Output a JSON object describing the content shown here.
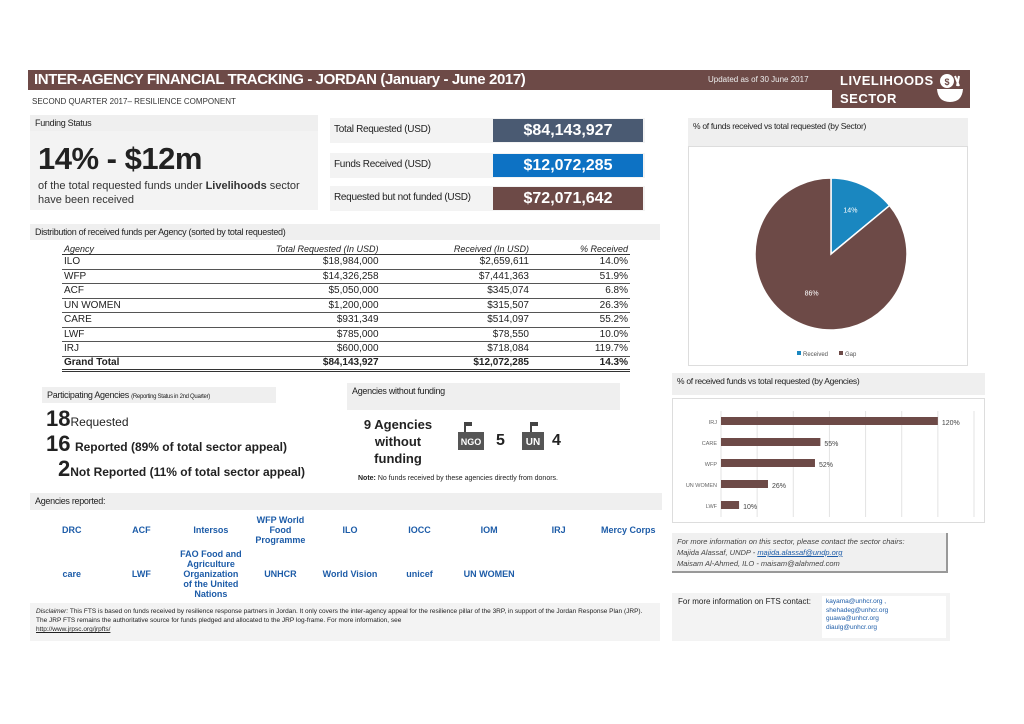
{
  "header": {
    "title": "INTER-AGENCY FINANCIAL TRACKING - JORDAN (January - June 2017)",
    "updated": "Updated as of 30 June 2017",
    "sector_line1": "LIVELIHOODS",
    "sector_line2": "SECTOR",
    "sector_icon": "money-bag-bowl-icon",
    "subtitle": "SECOND QUARTER 2017– RESILIENCE COMPONENT"
  },
  "funding": {
    "header": "Funding Status",
    "big": "14% - $12m",
    "text_pre": "of the total requested funds under ",
    "text_bold": "Livelihoods",
    "text_post": " sector have been received"
  },
  "summary": [
    {
      "label": "Total Requested (USD)",
      "value": "$84,143,927",
      "color": "#4a5a72"
    },
    {
      "label": "Funds Received  (USD)",
      "value": "$12,072,285",
      "color": "#0d72c4"
    },
    {
      "label": "Requested but not funded (USD)",
      "value": "$72,071,642",
      "color": "#6d4a47"
    }
  ],
  "distribution": {
    "header": "Distribution of received funds per Agency (sorted by total requested)",
    "columns": [
      "Agency",
      "Total Requested (In USD)",
      "Received (In USD)",
      "% Received"
    ],
    "rows": [
      [
        "ILO",
        "$18,984,000",
        "$2,659,611",
        "14.0%"
      ],
      [
        "WFP",
        "$14,326,258",
        "$7,441,363",
        "51.9%"
      ],
      [
        "ACF",
        "$5,050,000",
        "$345,074",
        "6.8%"
      ],
      [
        "UN WOMEN",
        "$1,200,000",
        "$315,507",
        "26.3%"
      ],
      [
        "CARE",
        "$931,349",
        "$514,097",
        "55.2%"
      ],
      [
        "LWF",
        "$785,000",
        "$78,550",
        "10.0%"
      ],
      [
        "IRJ",
        "$600,000",
        "$718,084",
        "119.7%"
      ]
    ],
    "total": [
      "Grand Total",
      "$84,143,927",
      "$12,072,285",
      "14.3%"
    ]
  },
  "participating": {
    "header": "Participating Agencies",
    "header_small": "(Reporting Status in 2nd Quarter)",
    "items": [
      {
        "n": "18",
        "t": "Requested"
      },
      {
        "n": "16",
        "t": "Reported (89% of total sector appeal)"
      },
      {
        "n": "2",
        "t": "Not Reported (11% of total sector appeal)"
      }
    ]
  },
  "without": {
    "header": "Agencies without funding",
    "title": "9 Agencies without funding",
    "ngo_label": "NGO",
    "ngo_count": "5",
    "un_label": "UN",
    "un_count": "4",
    "note_bold": "Note:",
    "note": " No funds received by these agencies directly from donors."
  },
  "reported": {
    "header": "Agencies reported:",
    "logos": [
      "DRC",
      "ACF",
      "Intersos",
      "WFP World Food Programme",
      "ILO",
      "IOCC",
      "IOM",
      "IRJ",
      "Mercy Corps",
      "care",
      "LWF",
      "FAO Food and Agriculture Organization of the United Nations",
      "UNHCR",
      "World Vision",
      "unicef",
      "UN WOMEN"
    ]
  },
  "disclaimer": {
    "label": "Disclaimer:",
    "text": " This FTS is based on funds received by resilience response partners in Jordan. It only covers the inter-agency appeal for the resilience pillar of the 3RP, in support of the Jordan Response Plan (JRP). The JRP FTS remains the authoritative source for funds pledged and allocated to the JRP log-frame. For more information, see ",
    "link": "http://www.jrpsc.org/jrpfts/"
  },
  "chart_data": [
    {
      "type": "pie",
      "title": "% of funds received vs total requested (by Sector)",
      "labels": [
        "Received",
        "Gap"
      ],
      "values": [
        14,
        86
      ],
      "data_labels": [
        "14%",
        "86%"
      ],
      "colors": [
        "#1a87c0",
        "#6d4a47"
      ],
      "legend": "bottom"
    },
    {
      "type": "bar",
      "orientation": "horizontal",
      "title": "% of received funds vs total requested (by Agencies)",
      "categories": [
        "IRJ",
        "CARE",
        "WFP",
        "UN WOMEN",
        "LWF"
      ],
      "values": [
        120,
        55,
        52,
        26,
        10
      ],
      "data_labels": [
        "120%",
        "55%",
        "52%",
        "26%",
        "10%"
      ],
      "xlim": [
        0,
        140
      ],
      "grid": true,
      "color": "#6d4a47"
    }
  ],
  "contact": {
    "line1": "For more information on this sector, please contact the sector chairs:",
    "line2": "Majida  Alassaf, UNDP - ",
    "email1": "majida.alassaf@undp.org",
    "line3": "Maisam  Al-Ahmed, ILO -  maisam@alahmed.com"
  },
  "fts": {
    "label": "For more information on FTS contact:",
    "emails": [
      "kayama@unhcr.org ,",
      "shehadeg@unhcr.org",
      "guawa@unhcr.org",
      "diaulg@unhcr.org"
    ]
  }
}
